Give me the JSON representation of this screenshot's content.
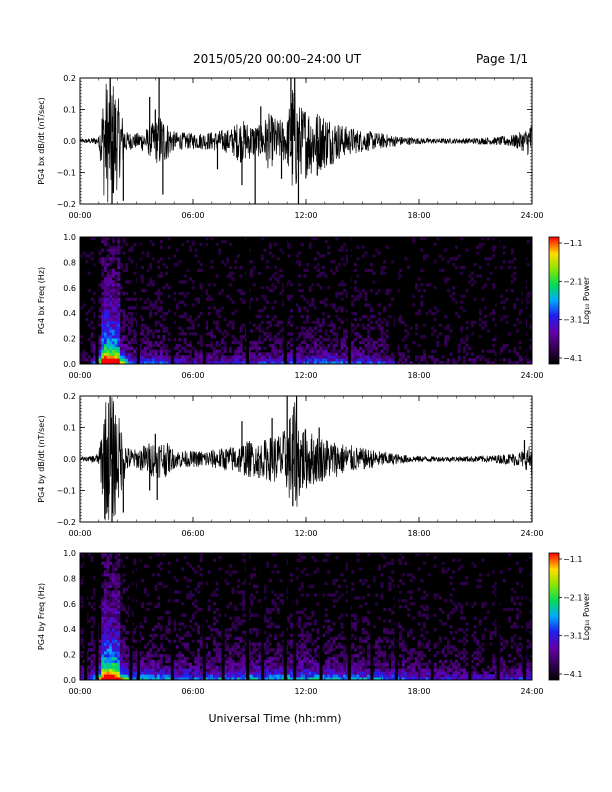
{
  "header": {
    "title": "2015/05/20  00:00–24:00 UT",
    "page": "Page 1/1"
  },
  "chart_data": [
    {
      "type": "line",
      "panel": "waveform",
      "ylabel": "PG4 bx dB/dt (nT/sec)",
      "ylim": [
        -0.2,
        0.2
      ],
      "yticks": [
        "0.2",
        "0.1",
        "0.0",
        "−0.1",
        "−0.2"
      ],
      "xlim": [
        0,
        24
      ],
      "xticks": [
        "00:00",
        "06:00",
        "12:00",
        "18:00",
        "24:00"
      ],
      "envelope": {
        "hours": [
          0,
          0.5,
          1.0,
          1.3,
          1.5,
          1.8,
          2.1,
          2.5,
          3.0,
          3.5,
          3.9,
          4.3,
          5.0,
          6.0,
          7.0,
          8.0,
          8.5,
          9.0,
          9.5,
          10.0,
          10.5,
          11.0,
          11.3,
          11.7,
          12.0,
          12.5,
          13.0,
          13.5,
          14.0,
          15.0,
          16.0,
          17.0,
          18.0,
          19.0,
          20.0,
          21.0,
          22.0,
          23.0,
          23.6,
          24.0
        ],
        "amplitude": [
          0.006,
          0.008,
          0.015,
          0.2,
          0.2,
          0.2,
          0.12,
          0.03,
          0.025,
          0.04,
          0.06,
          0.09,
          0.03,
          0.025,
          0.03,
          0.04,
          0.07,
          0.06,
          0.05,
          0.09,
          0.07,
          0.07,
          0.2,
          0.11,
          0.12,
          0.1,
          0.09,
          0.07,
          0.05,
          0.035,
          0.025,
          0.015,
          0.01,
          0.008,
          0.008,
          0.01,
          0.012,
          0.02,
          0.035,
          0.06
        ]
      },
      "spikes": [
        {
          "hour": 1.6,
          "value": 0.2
        },
        {
          "hour": 1.7,
          "value": -0.2
        },
        {
          "hour": 2.3,
          "value": -0.19
        },
        {
          "hour": 3.7,
          "value": 0.14
        },
        {
          "hour": 4.0,
          "value": 0.1
        },
        {
          "hour": 4.2,
          "value": 0.2
        },
        {
          "hour": 4.4,
          "value": -0.17
        },
        {
          "hour": 7.3,
          "value": -0.09
        },
        {
          "hour": 8.6,
          "value": -0.14
        },
        {
          "hour": 9.3,
          "value": -0.2
        },
        {
          "hour": 9.6,
          "value": 0.11
        },
        {
          "hour": 10.2,
          "value": 0.07
        },
        {
          "hour": 10.7,
          "value": -0.12
        },
        {
          "hour": 11.2,
          "value": 0.2
        },
        {
          "hour": 11.4,
          "value": 0.2
        },
        {
          "hour": 11.6,
          "value": -0.2
        },
        {
          "hour": 12.6,
          "value": -0.11
        },
        {
          "hour": 23.9,
          "value": 0.04
        }
      ]
    },
    {
      "type": "heatmap",
      "panel": "spectrogram",
      "ylabel": "PG4 bx Freq (Hz)",
      "ylim": [
        0,
        1.0
      ],
      "yticks": [
        "1.0",
        "0.8",
        "0.6",
        "0.4",
        "0.2",
        "0.0"
      ],
      "xlim": [
        0,
        24
      ],
      "xticks": [
        "00:00",
        "06:00",
        "12:00",
        "18:00",
        "24:00"
      ],
      "colorbar": {
        "label": "Log₁₀ Power",
        "ticks": [
          "−1.1",
          "−2.1",
          "−3.1",
          "−4.1"
        ],
        "range": [
          -4.1,
          -1.1
        ]
      },
      "activity": {
        "hours": [
          0,
          0.5,
          1.0,
          1.3,
          1.6,
          2.0,
          2.5,
          3.0,
          4.0,
          5.0,
          6.0,
          8.0,
          10.0,
          11.0,
          12.0,
          13.0,
          14.0,
          15.0,
          16.0,
          16.5,
          17.0,
          20.0,
          23.0,
          24.0
        ],
        "level": [
          0.05,
          0.1,
          0.55,
          1.0,
          1.0,
          0.85,
          0.45,
          0.3,
          0.35,
          0.25,
          0.2,
          0.25,
          0.3,
          0.3,
          0.35,
          0.35,
          0.35,
          0.3,
          0.3,
          0.25,
          0.1,
          0.07,
          0.08,
          0.1
        ]
      },
      "data_gaps": [
        0.9,
        3.1,
        4.9,
        6.6,
        8.9,
        10.9,
        11.4,
        14.3,
        16.8,
        22.2,
        23.6
      ]
    },
    {
      "type": "line",
      "panel": "waveform",
      "ylabel": "PG4 by dB/dt (nT/sec)",
      "ylim": [
        -0.2,
        0.2
      ],
      "yticks": [
        "0.2",
        "0.1",
        "0.0",
        "−0.1",
        "−0.2"
      ],
      "xlim": [
        0,
        24
      ],
      "xticks": [
        "00:00",
        "06:00",
        "12:00",
        "18:00",
        "24:00"
      ],
      "envelope": {
        "hours": [
          0,
          0.5,
          1.0,
          1.3,
          1.5,
          1.8,
          2.1,
          2.5,
          3.0,
          3.5,
          4.0,
          4.5,
          5.0,
          6.0,
          7.0,
          8.0,
          8.5,
          9.0,
          9.5,
          10.0,
          10.5,
          11.0,
          11.3,
          11.7,
          12.0,
          12.5,
          13.0,
          13.5,
          14.0,
          15.0,
          16.0,
          17.0,
          18.0,
          19.0,
          20.0,
          21.0,
          22.0,
          23.0,
          23.6,
          24.0
        ],
        "amplitude": [
          0.006,
          0.008,
          0.02,
          0.2,
          0.2,
          0.2,
          0.13,
          0.04,
          0.03,
          0.05,
          0.06,
          0.06,
          0.03,
          0.025,
          0.03,
          0.04,
          0.05,
          0.06,
          0.05,
          0.07,
          0.08,
          0.1,
          0.2,
          0.12,
          0.1,
          0.08,
          0.07,
          0.06,
          0.05,
          0.035,
          0.025,
          0.015,
          0.01,
          0.008,
          0.008,
          0.01,
          0.012,
          0.02,
          0.03,
          0.05
        ]
      },
      "spikes": [
        {
          "hour": 1.6,
          "value": 0.2
        },
        {
          "hour": 1.7,
          "value": -0.2
        },
        {
          "hour": 2.3,
          "value": -0.17
        },
        {
          "hour": 3.7,
          "value": -0.1
        },
        {
          "hour": 4.0,
          "value": 0.08
        },
        {
          "hour": 4.1,
          "value": -0.13
        },
        {
          "hour": 8.6,
          "value": 0.12
        },
        {
          "hour": 9.5,
          "value": -0.06
        },
        {
          "hour": 10.2,
          "value": 0.13
        },
        {
          "hour": 11.0,
          "value": 0.2
        },
        {
          "hour": 11.3,
          "value": -0.15
        },
        {
          "hour": 11.5,
          "value": 0.2
        },
        {
          "hour": 12.7,
          "value": 0.1
        },
        {
          "hour": 23.6,
          "value": 0.06
        },
        {
          "hour": 24.0,
          "value": -0.2
        }
      ]
    },
    {
      "type": "heatmap",
      "panel": "spectrogram",
      "ylabel": "PG4 by Freq (Hz)",
      "ylim": [
        0,
        1.0
      ],
      "yticks": [
        "1.0",
        "0.8",
        "0.6",
        "0.4",
        "0.2",
        "0.0"
      ],
      "xlim": [
        0,
        24
      ],
      "xticks": [
        "00:00",
        "06:00",
        "12:00",
        "18:00",
        "24:00"
      ],
      "colorbar": {
        "label": "Log₁₀ Power",
        "ticks": [
          "−1.1",
          "−2.1",
          "−3.1",
          "−4.1"
        ],
        "range": [
          -4.1,
          -1.1
        ]
      },
      "activity": {
        "hours": [
          0,
          0.5,
          1.0,
          1.3,
          1.6,
          2.0,
          2.5,
          3.0,
          4.0,
          5.0,
          6.0,
          8.0,
          10.0,
          11.0,
          12.0,
          13.0,
          14.0,
          15.0,
          16.0,
          17.0,
          18.0,
          20.0,
          22.0,
          24.0
        ],
        "level": [
          0.25,
          0.3,
          0.6,
          1.0,
          1.0,
          0.85,
          0.55,
          0.45,
          0.45,
          0.4,
          0.38,
          0.42,
          0.45,
          0.45,
          0.45,
          0.45,
          0.42,
          0.4,
          0.4,
          0.35,
          0.3,
          0.25,
          0.25,
          0.3
        ]
      },
      "data_gaps": [
        0.3,
        0.9,
        2.7,
        3.1,
        4.9,
        6.6,
        7.6,
        8.9,
        9.7,
        10.9,
        11.4,
        12.8,
        14.3,
        15.5,
        16.8,
        18.7,
        20.7,
        22.2,
        23.6
      ]
    }
  ],
  "footer": {
    "xlabel": "Universal Time (hh:mm)"
  }
}
